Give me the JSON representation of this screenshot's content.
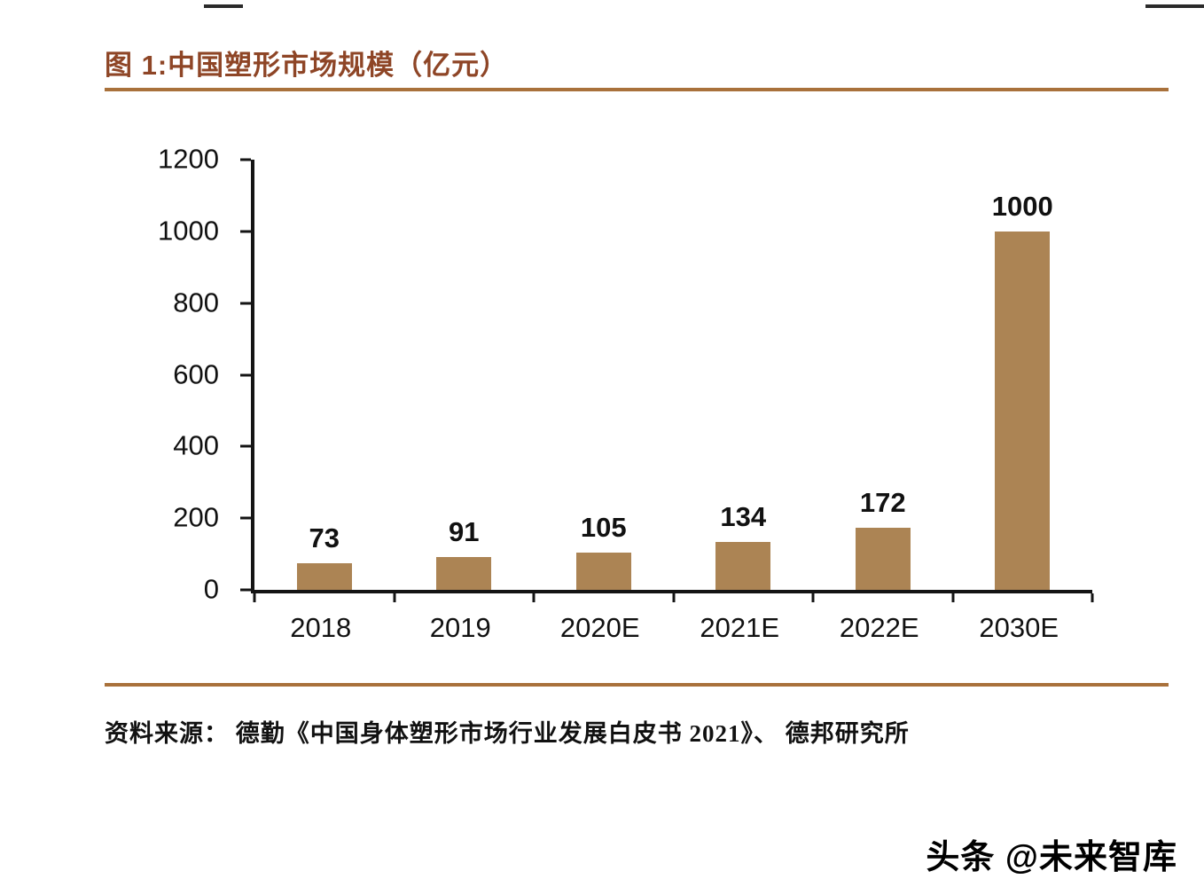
{
  "page": {
    "title": "图 1:中国塑形市场规模（亿元）",
    "source": "资料来源： 德勤《中国身体塑形市场行业发展白皮书 2021》、 德邦研究所",
    "watermark": "头条 @未来智库"
  },
  "colors": {
    "title_brown": "#8E4526",
    "rule_brown": "#A9713B",
    "bar_tan": "#AC8454",
    "axis_black": "#141414"
  },
  "chart_data": {
    "type": "bar",
    "title": "图 1:中国塑形市场规模（亿元）",
    "categories": [
      "2018",
      "2019",
      "2020E",
      "2021E",
      "2022E",
      "2030E"
    ],
    "values": [
      73,
      91,
      105,
      134,
      172,
      1000
    ],
    "xlabel": "",
    "ylabel": "",
    "ylim": [
      0,
      1200
    ],
    "ytick_step": 200,
    "grid": false,
    "legend": "none",
    "bar_color": "#AC8454",
    "value_labels_shown": true
  }
}
